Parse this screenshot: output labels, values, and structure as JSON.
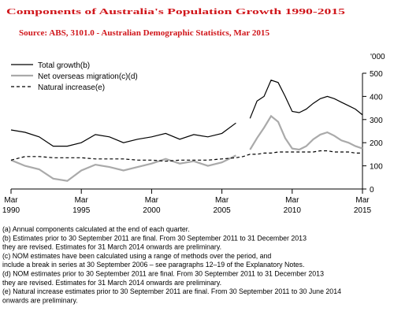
{
  "chart_data": {
    "type": "line",
    "title": "Components of Australia's Population Growth 1990-2015",
    "subtitle": "Source: ABS, 3101.0 - Australian Demographic Statistics, Mar 2015",
    "y_unit_label": "'000",
    "x": [
      1990,
      1991,
      1992,
      1993,
      1994,
      1995,
      1996,
      1997,
      1998,
      1999,
      2000,
      2001,
      2002,
      2003,
      2004,
      2005,
      2006,
      2006.5,
      2007,
      2007.5,
      2008,
      2008.5,
      2009,
      2009.5,
      2010,
      2010.5,
      2011,
      2011.5,
      2012,
      2012.5,
      2013,
      2013.5,
      2014,
      2014.5,
      2015
    ],
    "series": [
      {
        "name": "Total growth(b)",
        "color": "#000000",
        "dash": false,
        "width": 1.2,
        "values": [
          255,
          245,
          225,
          185,
          185,
          200,
          235,
          225,
          200,
          215,
          225,
          240,
          215,
          235,
          225,
          240,
          285,
          null,
          305,
          380,
          400,
          470,
          460,
          400,
          335,
          330,
          345,
          370,
          390,
          400,
          390,
          375,
          360,
          345,
          320
        ]
      },
      {
        "name": "Net overseas migration(c)(d)",
        "color": "#aaaaaa",
        "dash": false,
        "width": 2.2,
        "values": [
          125,
          100,
          85,
          45,
          35,
          80,
          105,
          95,
          80,
          95,
          110,
          130,
          110,
          120,
          100,
          115,
          145,
          null,
          170,
          220,
          265,
          315,
          290,
          220,
          175,
          170,
          185,
          215,
          235,
          245,
          230,
          210,
          200,
          185,
          175
        ]
      },
      {
        "name": "Natural increase(e)",
        "color": "#000000",
        "dash": true,
        "width": 1.2,
        "values": [
          125,
          140,
          140,
          135,
          135,
          135,
          130,
          130,
          130,
          125,
          125,
          120,
          125,
          125,
          125,
          130,
          135,
          140,
          150,
          150,
          155,
          155,
          160,
          160,
          160,
          160,
          160,
          160,
          165,
          165,
          160,
          160,
          160,
          155,
          155
        ]
      }
    ],
    "xlim": [
      1990,
      2015
    ],
    "xticks": [
      {
        "value": 1990,
        "label": "Mar 1990"
      },
      {
        "value": 1995,
        "label": "Mar 1995"
      },
      {
        "value": 2000,
        "label": "Mar 2000"
      },
      {
        "value": 2005,
        "label": "Mar 2005"
      },
      {
        "value": 2010,
        "label": "Mar 2010"
      },
      {
        "value": 2015,
        "label": "Mar 2015"
      }
    ],
    "ylim": [
      0,
      500
    ],
    "yticks": [
      0,
      100,
      200,
      300,
      400,
      500
    ],
    "y_axis_side": "right",
    "grid": false,
    "legend": "top-left",
    "notes": [
      "(a) Annual components calculated at the end of each quarter.",
      "(b) Estimates prior to 30 September 2011 are final. From 30 September 2011 to 31 December 2013",
      "they are revised. Estimates for 31 March 2014 onwards are preliminary.",
      "(c) NOM estimates have been calculated using a range of methods over the period, and",
      "include a break in series at 30 September 2006 – see paragraphs 12–19 of the Explanatory Notes.",
      "(d) NOM estimates prior to 30 September 2011 are final. From 30 September 2011 to 31 December 2013",
      "they are revised. Estimates for 31 March 2014 onwards are preliminary.",
      "(e) Natural increase estimates prior to 30 September 2011 are final. From 30 September 2011 to 30 June 2014",
      "onwards are preliminary."
    ]
  }
}
